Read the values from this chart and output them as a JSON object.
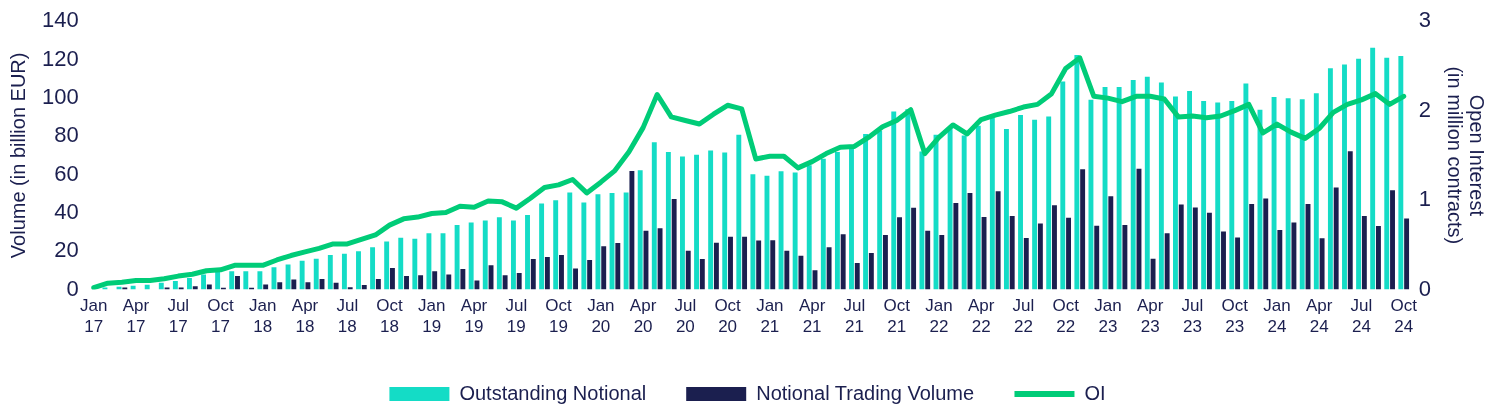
{
  "chart_data": {
    "type": "bar",
    "ylabel": "Volume (in billion EUR)",
    "y2label": "Open Interest\n(in million contracts)",
    "categories": [
      "Jan 17",
      null,
      null,
      "Apr 17",
      null,
      null,
      "Jul 17",
      null,
      null,
      "Oct 17",
      null,
      null,
      "Jan 18",
      null,
      null,
      "Apr 18",
      null,
      null,
      "Jul 18",
      null,
      null,
      "Oct 18",
      null,
      null,
      "Jan 19",
      null,
      null,
      "Apr 19",
      null,
      null,
      "Jul 19",
      null,
      null,
      "Oct 19",
      null,
      null,
      "Jan 20",
      null,
      null,
      "Apr 20",
      null,
      null,
      "Jul 20",
      null,
      null,
      "Oct 20",
      null,
      null,
      "Jan 21",
      null,
      null,
      "Apr 21",
      null,
      null,
      "Jul 21",
      null,
      null,
      "Oct 21",
      null,
      null,
      "Jan 22",
      null,
      null,
      "Apr 22",
      null,
      null,
      "Jul 22",
      null,
      null,
      "Oct 22",
      null,
      null,
      "Jan 23",
      null,
      null,
      "Apr 23",
      null,
      null,
      "Jul 23",
      null,
      null,
      "Oct 23",
      null,
      null,
      "Jan 24",
      null,
      null,
      "Apr 24",
      null,
      null,
      "Jul 24",
      null,
      null,
      "Oct 24"
    ],
    "series": [
      {
        "name": "Outstanding Notional",
        "color": "#14dcc6",
        "values": [
          null,
          1,
          1.5,
          2,
          2.5,
          3.5,
          4.5,
          6,
          7.8,
          9.5,
          9.5,
          9.5,
          9.5,
          11.6,
          13,
          15,
          16,
          18,
          18.7,
          20,
          22,
          25,
          27,
          26.5,
          29.4,
          29.4,
          33.7,
          35,
          36,
          37.7,
          36,
          38.9,
          44.9,
          46.6,
          50.6,
          45.4,
          49.7,
          50.4,
          50.6,
          62.2,
          76.9,
          71.7,
          69.4,
          70.3,
          72.5,
          71.5,
          80.7,
          60.1,
          59.4,
          61.7,
          61.1,
          64.8,
          68.2,
          71.7,
          75.1,
          81.2,
          82.9,
          92.9,
          94.1,
          72,
          80.8,
          84.6,
          80.3,
          85.5,
          89.8,
          83.8,
          91,
          88.6,
          90.3,
          108.5,
          122.3,
          99,
          105.7,
          105.7,
          109.3,
          111,
          108,
          100.7,
          103.6,
          98.4,
          97.6,
          98.4,
          107.5,
          93.8,
          100.5,
          99.8,
          99.3,
          102.4,
          115.4,
          117.4,
          120.4,
          126.1,
          120.9,
          121.8
        ]
      },
      {
        "name": "Notional Trading Volume",
        "color": "#1b1f4f",
        "values": [
          0,
          null,
          1,
          null,
          null,
          1,
          1,
          1.7,
          2.6,
          0.9,
          7,
          0.9,
          2.6,
          3.8,
          5.2,
          3.8,
          5.5,
          3.5,
          1.2,
          2.4,
          5.5,
          11.2,
          7,
          7.4,
          9.5,
          7.8,
          10.7,
          4.7,
          12.6,
          7.4,
          8.6,
          15.9,
          16.9,
          18,
          11,
          15.4,
          22.6,
          24.2,
          61.8,
          30.6,
          32,
          47.2,
          20.2,
          15.9,
          24.4,
          27.5,
          27.5,
          25.6,
          25.7,
          20.2,
          17.6,
          10,
          22.1,
          28.8,
          13.8,
          19,
          28.5,
          37.7,
          42.7,
          30.6,
          28.5,
          45.1,
          50.4,
          37.8,
          51.3,
          38.3,
          26.9,
          34.4,
          44,
          37.5,
          62.7,
          33.3,
          48.7,
          33.7,
          63,
          16,
          29.4,
          44.4,
          42.8,
          40.1,
          30.2,
          27.1,
          44.6,
          47.5,
          31.1,
          34.9,
          44.6,
          26.8,
          53.2,
          72.2,
          38.3,
          33.2,
          51.8,
          37.1
        ]
      },
      {
        "name": "OI",
        "type": "line",
        "axis": "y2",
        "color": "#00cc78",
        "values": [
          0.02,
          0.07,
          0.08,
          0.1,
          0.1,
          0.12,
          0.15,
          0.17,
          0.21,
          0.22,
          0.27,
          0.27,
          0.27,
          0.33,
          0.38,
          0.42,
          0.46,
          0.51,
          0.51,
          0.56,
          0.61,
          0.72,
          0.79,
          0.81,
          0.85,
          0.86,
          0.93,
          0.92,
          0.99,
          0.98,
          0.91,
          1.02,
          1.14,
          1.17,
          1.23,
          1.08,
          1.2,
          1.33,
          1.54,
          1.81,
          2.18,
          1.93,
          1.89,
          1.85,
          1.96,
          2.06,
          2.02,
          1.46,
          1.49,
          1.49,
          1.36,
          1.43,
          1.52,
          1.59,
          1.6,
          1.7,
          1.82,
          1.89,
          2.01,
          1.52,
          1.7,
          1.84,
          1.74,
          1.9,
          1.95,
          1.99,
          2.04,
          2.07,
          2.19,
          2.47,
          2.59,
          2.16,
          2.14,
          2.1,
          2.16,
          2.16,
          2.13,
          1.93,
          1.94,
          1.92,
          1.94,
          2.0,
          2.07,
          1.75,
          1.85,
          1.76,
          1.69,
          1.8,
          1.98,
          2.07,
          2.12,
          2.19,
          2.07,
          2.16
        ]
      }
    ],
    "ylim": [
      0,
      140
    ],
    "yticks": [
      0,
      20,
      40,
      60,
      80,
      100,
      120,
      140
    ],
    "y2lim": [
      0,
      3
    ],
    "y2ticks": [
      0,
      1,
      2,
      3
    ],
    "grid": false,
    "legend": "bottom",
    "marker": "none",
    "line_style": "solid"
  }
}
